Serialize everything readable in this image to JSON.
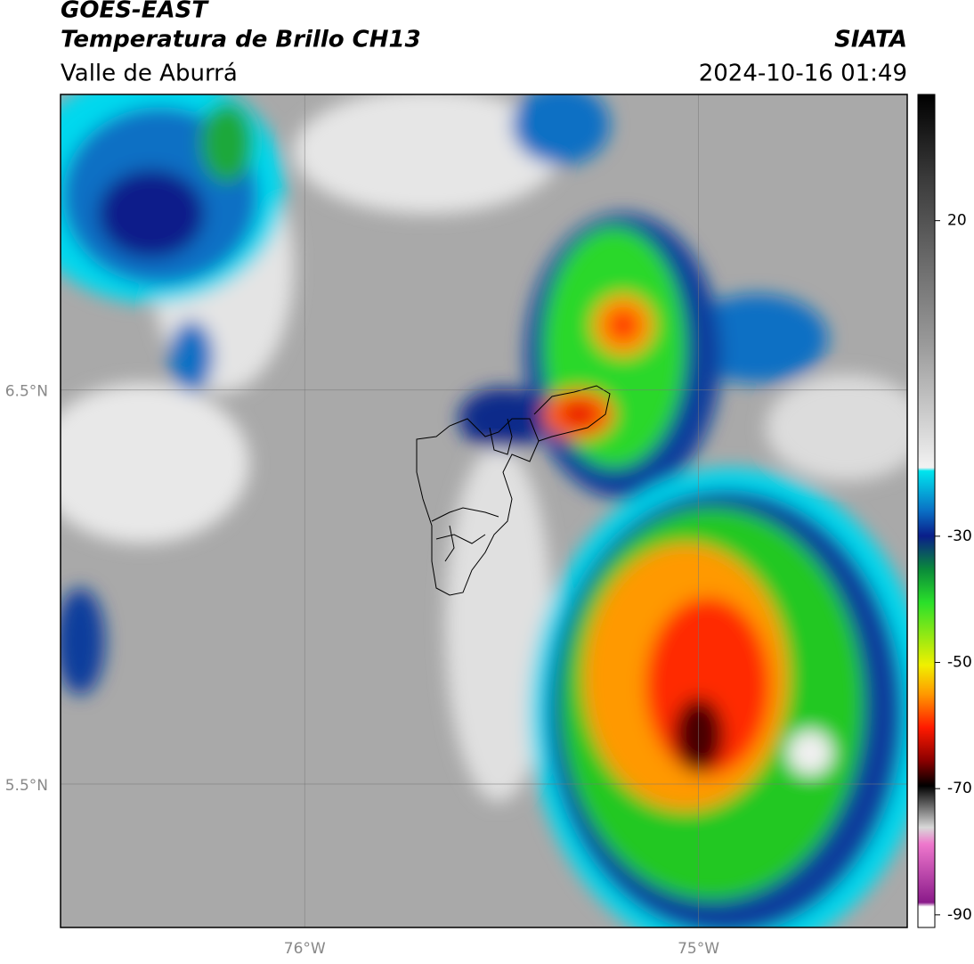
{
  "header": {
    "title": "GOES-EAST",
    "subtitle": "Temperatura de Brillo CH13",
    "region": "Valle de Aburrá",
    "source": "SIATA",
    "datetime": "2024-10-16 01:49"
  },
  "map": {
    "lat_range": [
      5.136,
      7.25
    ],
    "lon_range": [
      -76.62,
      -74.47
    ],
    "lat_ticks": [
      {
        "value": 6.5,
        "label": "6.5°N"
      },
      {
        "value": 5.5,
        "label": "5.5°N"
      }
    ],
    "lon_ticks": [
      {
        "value": -76,
        "label": "76°W"
      },
      {
        "value": -75,
        "label": "75°W"
      }
    ]
  },
  "colorbar": {
    "range": [
      -92,
      40
    ],
    "ticks": [
      20,
      -30,
      -50,
      -70,
      -90
    ]
  }
}
